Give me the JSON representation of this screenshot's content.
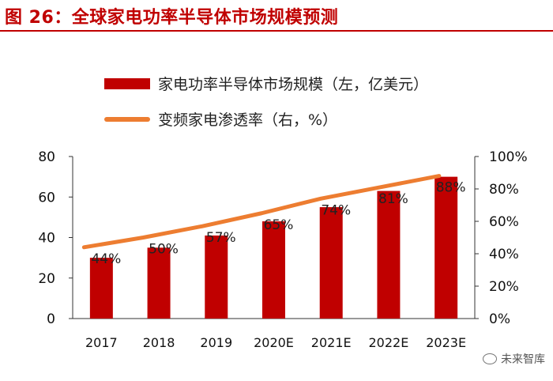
{
  "title": "图 26：全球家电功率半导体市场规模预测",
  "watermark": "未来智库",
  "chart_data": {
    "type": "bar",
    "categories": [
      "2017",
      "2018",
      "2019",
      "2020E",
      "2021E",
      "2022E",
      "2023E"
    ],
    "series": [
      {
        "name": "家电功率半导体市场规模（左，亿美元）",
        "type": "bar",
        "axis": "left",
        "color": "#c00000",
        "values": [
          30,
          35,
          41,
          48,
          55,
          63,
          70
        ]
      },
      {
        "name": "变频家电渗透率（右，%）",
        "type": "line",
        "axis": "right",
        "color": "#ed7d31",
        "values": [
          44,
          50,
          57,
          65,
          74,
          81,
          88
        ],
        "labels": [
          "44%",
          "50%",
          "57%",
          "65%",
          "74%",
          "81%",
          "88%"
        ]
      }
    ],
    "ylim_left": [
      0,
      80
    ],
    "yticks_left": [
      "0",
      "20",
      "40",
      "60",
      "80"
    ],
    "ylim_right": [
      0,
      100
    ],
    "yticks_right": [
      "0%",
      "20%",
      "40%",
      "60%",
      "80%",
      "100%"
    ],
    "legend": {
      "position": "top",
      "entries": [
        "家电功率半导体市场规模（左，亿美元）",
        "变频家电渗透率（右，%）"
      ]
    }
  }
}
